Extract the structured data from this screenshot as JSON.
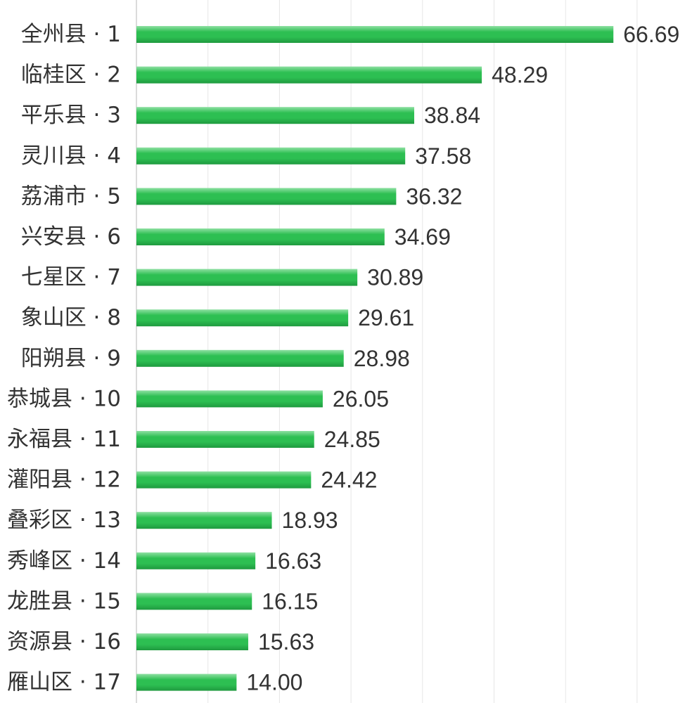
{
  "chart_data": {
    "type": "bar",
    "orientation": "horizontal",
    "title": "",
    "xlabel": "",
    "ylabel": "",
    "categories": [
      "全州县 · 1",
      "临桂区 · 2",
      "平乐县 · 3",
      "灵川县 · 4",
      "荔浦市 · 5",
      "兴安县 · 6",
      "七星区 · 7",
      "象山区 · 8",
      "阳朔县 · 9",
      "恭城县 · 10",
      "永福县 · 11",
      "灌阳县 · 12",
      "叠彩区 · 13",
      "秀峰区 · 14",
      "龙胜县 · 15",
      "资源县 · 16",
      "雁山区 · 17"
    ],
    "values": [
      66.69,
      48.29,
      38.84,
      37.58,
      36.32,
      34.69,
      30.89,
      29.61,
      28.98,
      26.05,
      24.85,
      24.42,
      18.93,
      16.63,
      16.15,
      15.63,
      14.0
    ],
    "value_labels": [
      "66.69",
      "48.29",
      "38.84",
      "37.58",
      "36.32",
      "34.69",
      "30.89",
      "29.61",
      "28.98",
      "26.05",
      "24.85",
      "24.42",
      "18.93",
      "16.63",
      "16.15",
      "15.63",
      "14.00"
    ],
    "xlim": [
      0,
      80
    ],
    "grid": true,
    "legend": "none",
    "colors": {
      "bar": "#2dbf52",
      "bar_light": "#8fe0a3",
      "bar_dark": "#1f9a3f",
      "grid": "#e6e6e6",
      "text": "#333333"
    }
  }
}
